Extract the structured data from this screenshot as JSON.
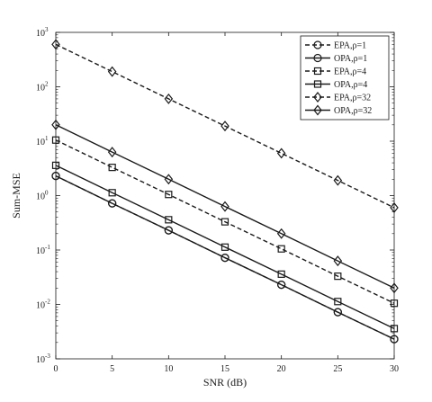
{
  "chart_data": {
    "type": "line",
    "xlabel": "SNR (dB)",
    "ylabel": "Sum-MSE",
    "x": [
      0,
      5,
      10,
      15,
      20,
      25,
      30
    ],
    "xlim": [
      0,
      30
    ],
    "ylim": [
      0.001,
      1000
    ],
    "yscale": "log",
    "grid": false,
    "legend_position": "top-right",
    "x_ticks": [
      "0",
      "5",
      "10",
      "15",
      "20",
      "25",
      "30"
    ],
    "y_ticks": [
      {
        "base": "10",
        "exp": "-3"
      },
      {
        "base": "10",
        "exp": "-2"
      },
      {
        "base": "10",
        "exp": "-1"
      },
      {
        "base": "10",
        "exp": "0"
      },
      {
        "base": "10",
        "exp": "1"
      },
      {
        "base": "10",
        "exp": "2"
      },
      {
        "base": "10",
        "exp": "3"
      }
    ],
    "series": [
      {
        "name": "EPA,ρ=1",
        "line": "dashed",
        "marker": "circle",
        "values": [
          2.3,
          0.72,
          0.23,
          0.072,
          0.023,
          0.0072,
          0.0023
        ]
      },
      {
        "name": "OPA,ρ=1",
        "line": "solid",
        "marker": "circle",
        "values": [
          2.3,
          0.72,
          0.23,
          0.072,
          0.023,
          0.0072,
          0.0023
        ]
      },
      {
        "name": "EPA,ρ=4",
        "line": "dashed",
        "marker": "square",
        "values": [
          10.5,
          3.3,
          1.05,
          0.33,
          0.105,
          0.033,
          0.0105
        ]
      },
      {
        "name": "OPA,ρ=4",
        "line": "solid",
        "marker": "square",
        "values": [
          3.6,
          1.13,
          0.36,
          0.113,
          0.036,
          0.0113,
          0.0036
        ]
      },
      {
        "name": "EPA,ρ=32",
        "line": "dashed",
        "marker": "diamond",
        "values": [
          600,
          190,
          60,
          19,
          6.0,
          1.9,
          0.6
        ]
      },
      {
        "name": "OPA,ρ=32",
        "line": "solid",
        "marker": "diamond",
        "values": [
          20,
          6.3,
          2.0,
          0.63,
          0.2,
          0.063,
          0.02
        ]
      }
    ]
  }
}
